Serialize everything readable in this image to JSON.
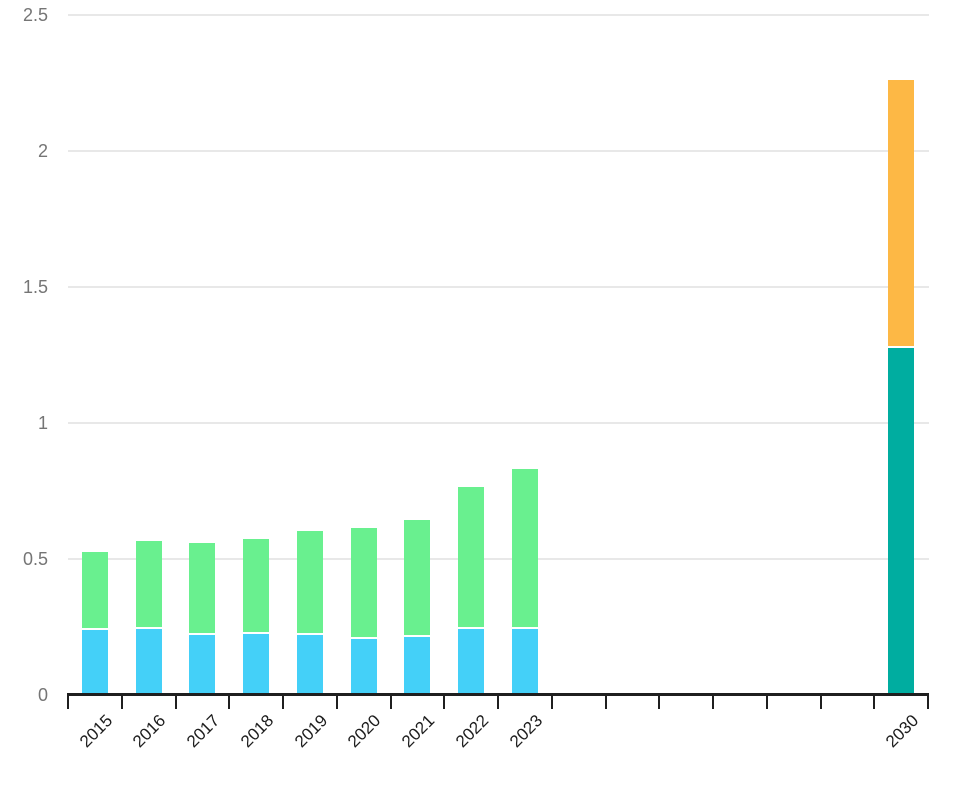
{
  "chart_data": {
    "type": "bar",
    "stacked": true,
    "title": "",
    "xlabel": "",
    "ylabel": "",
    "legend": "none",
    "grid": "horizontal",
    "ylim": [
      0,
      2.5
    ],
    "y_tick_step": 0.5,
    "y_tick_labels": [
      "0",
      "0.5",
      "1",
      "1.5",
      "2",
      "2.5"
    ],
    "x_axis": {
      "first_slot": "2015",
      "last_slot": "2030",
      "tick_every_year": true,
      "unlabeled_empty_slots": [
        "2024",
        "2025",
        "2026",
        "2027",
        "2028",
        "2029"
      ]
    },
    "categories": [
      "2015",
      "2016",
      "2017",
      "2018",
      "2019",
      "2020",
      "2021",
      "2022",
      "2023",
      "2030"
    ],
    "series": [
      {
        "name": "series-blue",
        "color": "#44D0F8",
        "values": [
          0.239,
          0.241,
          0.222,
          0.226,
          0.22,
          0.206,
          0.214,
          0.241,
          0.243,
          null
        ]
      },
      {
        "name": "series-green",
        "color": "#69F08F",
        "values": [
          0.287,
          0.324,
          0.336,
          0.348,
          0.383,
          0.408,
          0.429,
          0.525,
          0.588,
          null
        ]
      },
      {
        "name": "series-teal",
        "color": "#00ADA0",
        "values": [
          null,
          null,
          null,
          null,
          null,
          null,
          null,
          null,
          null,
          1.276
        ]
      },
      {
        "name": "series-orange",
        "color": "#FDB845",
        "values": [
          null,
          null,
          null,
          null,
          null,
          null,
          null,
          null,
          null,
          0.984
        ]
      }
    ],
    "totals": [
      0.526,
      0.565,
      0.558,
      0.574,
      0.603,
      0.614,
      0.643,
      0.766,
      0.831,
      2.26
    ]
  },
  "colors": {
    "background": "#FFFFFF",
    "gridline": "#E8E8E8",
    "axis": "#1F1F1F",
    "y_label": "#757575",
    "x_label": "#1C1C1C",
    "segment_separator": "#FFFFFF"
  }
}
